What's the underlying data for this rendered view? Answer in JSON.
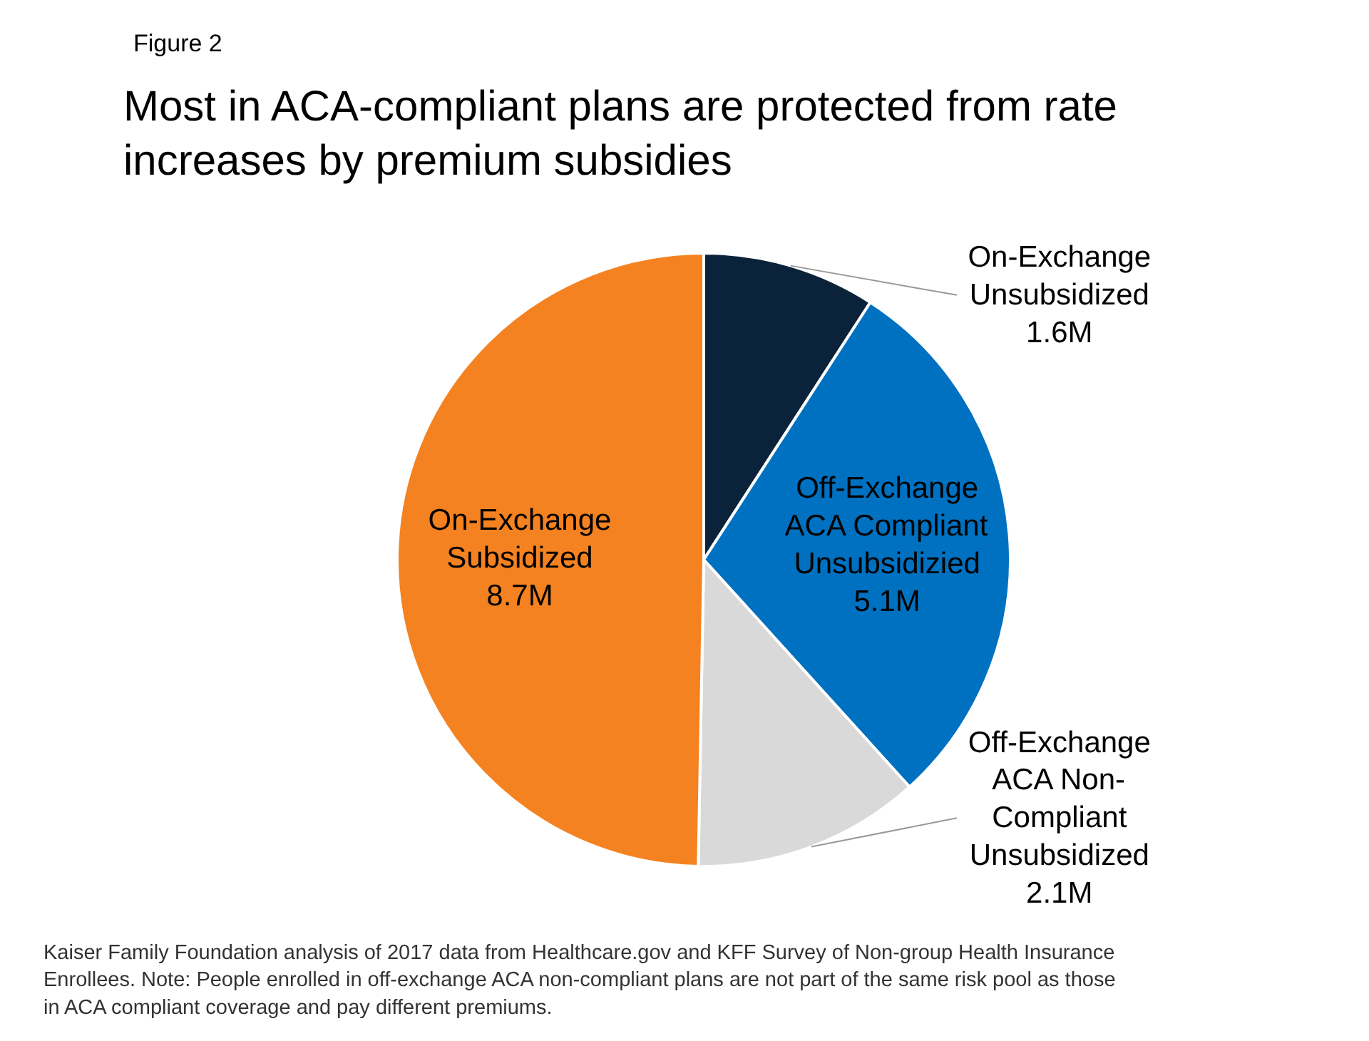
{
  "chart_data": {
    "type": "pie",
    "title": "Most in ACA-compliant plans are protected from rate\nincreases by premium subsidies",
    "subtitle": "Figure 2",
    "categories": [
      "On-Exchange\nUnsubsidized",
      "Off-Exchange\nACA Compliant\nUnsubsidizied",
      "Off-Exchange\nACA Non-\nCompliant\nUnsubsidized",
      "On-Exchange\nSubsidized\n"
    ],
    "values": [
      1.6,
      5.1,
      2.1,
      8.7
    ],
    "value_labels": [
      "1.6M",
      "5.1M",
      "2.1M",
      "8.7M"
    ],
    "colors": [
      "#0b233a",
      "#0071c0",
      "#d9d9d9",
      "#f58220"
    ],
    "annotations": [
      "Kaiser Family Foundation analysis of 2017 data from Healthcare.gov and KFF Survey of Non-group Health Insurance Enrollees. Note: People enrolled in off-exchange ACA non-compliant plans are not part of the same risk pool as those in ACA compliant coverage and pay different premiums."
    ]
  }
}
